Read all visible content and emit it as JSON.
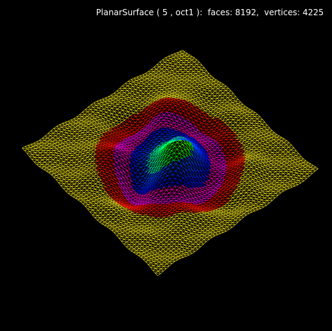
{
  "viewer": {
    "info_text": "PlanarSurface ( 5 , oct1 ):  faces: 8192,  vertices: 4225",
    "background": "#000000"
  },
  "mesh": {
    "shape": "PlanarSurface",
    "level": 5,
    "base": "oct1",
    "faces": 8192,
    "vertices": 4225,
    "render_mode": "wireframe",
    "edge_colormap": [
      "#ffff00",
      "#ff0000",
      "#ff00ff",
      "#0000ff",
      "#00ffff",
      "#00ff00"
    ]
  }
}
